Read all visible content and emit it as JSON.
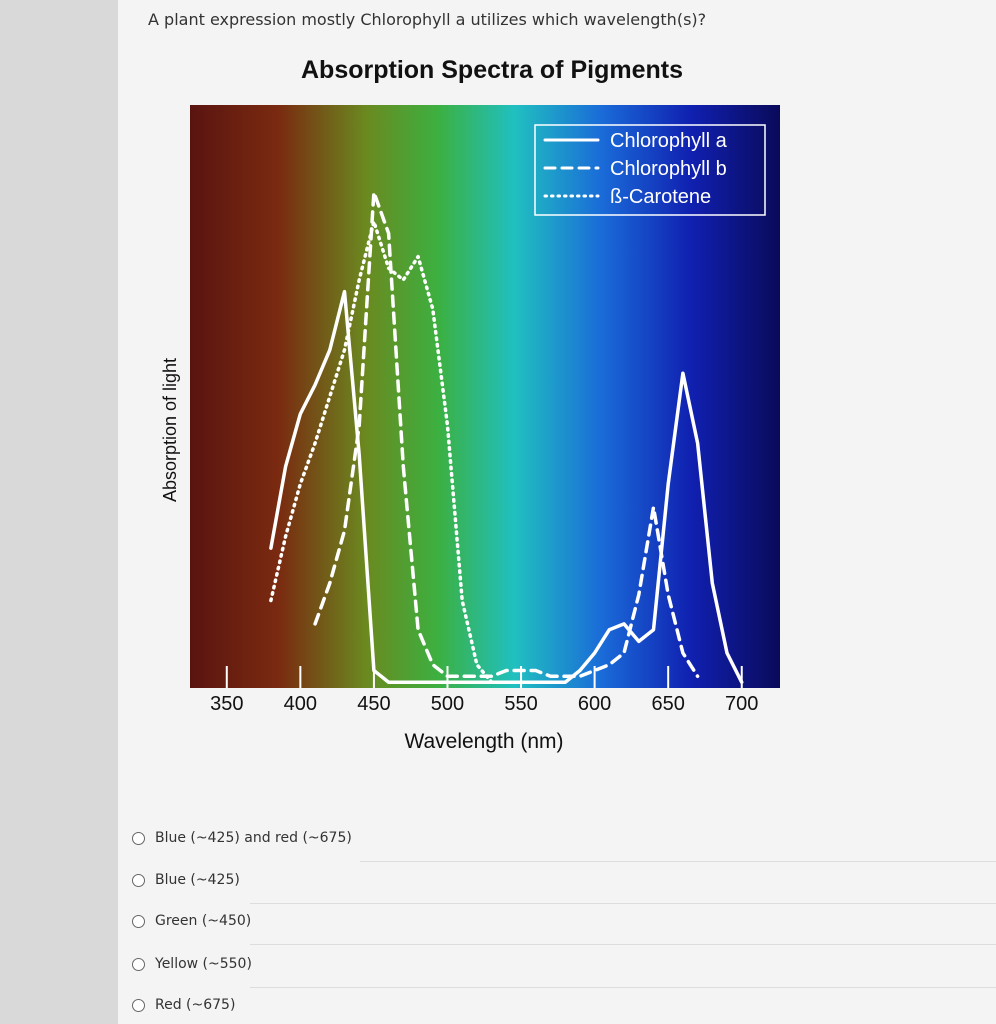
{
  "question": "A plant expression mostly Chlorophyll a utilizes which wavelength(s)?",
  "chart_data": {
    "type": "line",
    "title": "Absorption Spectra of Pigments",
    "x_label": "Wavelength (nm)",
    "y_label": "Absorption of light",
    "x": [
      380,
      390,
      400,
      410,
      420,
      430,
      440,
      450,
      460,
      470,
      480,
      490,
      500,
      510,
      520,
      530,
      540,
      550,
      560,
      570,
      580,
      590,
      600,
      610,
      620,
      630,
      640,
      650,
      660,
      670,
      680,
      690,
      700
    ],
    "xlim": [
      325,
      726
    ],
    "xticks": [
      350,
      400,
      450,
      500,
      550,
      600,
      650,
      700
    ],
    "ylim": [
      0,
      100
    ],
    "legend": "top-right",
    "series": [
      {
        "name": "Chlorophyll a",
        "color": "#ffffff",
        "style": "solid",
        "values": [
          24,
          38,
          47,
          52,
          58,
          68,
          40,
          3,
          1,
          1,
          1,
          1,
          1,
          1,
          1,
          1,
          1,
          1,
          1,
          1,
          1,
          3,
          6,
          10,
          11,
          8,
          10,
          35,
          54,
          42,
          18,
          6,
          1
        ]
      },
      {
        "name": "Chlorophyll b",
        "color": "#ffffff",
        "style": "dashed",
        "values": [
          null,
          null,
          null,
          11,
          18,
          27,
          45,
          85,
          78,
          38,
          10,
          4,
          2,
          2,
          2,
          2,
          3,
          3,
          3,
          2,
          2,
          2,
          3,
          4,
          6,
          16,
          31,
          16,
          6,
          2,
          null,
          null,
          null
        ]
      },
      {
        "name": "ß-Carotene",
        "color": "#ffffff",
        "style": "dotted",
        "values": [
          15,
          26,
          35,
          42,
          50,
          58,
          70,
          80,
          72,
          70,
          74,
          65,
          45,
          15,
          4,
          1,
          null,
          null,
          null,
          null,
          null,
          null,
          null,
          null,
          null,
          null,
          null,
          null,
          null,
          null,
          null,
          null,
          null
        ]
      }
    ]
  },
  "options": [
    "Blue (~425) and red (~675)",
    "Blue (~425)",
    "Green (~450)",
    "Yellow (~550)",
    "Red (~675)"
  ]
}
